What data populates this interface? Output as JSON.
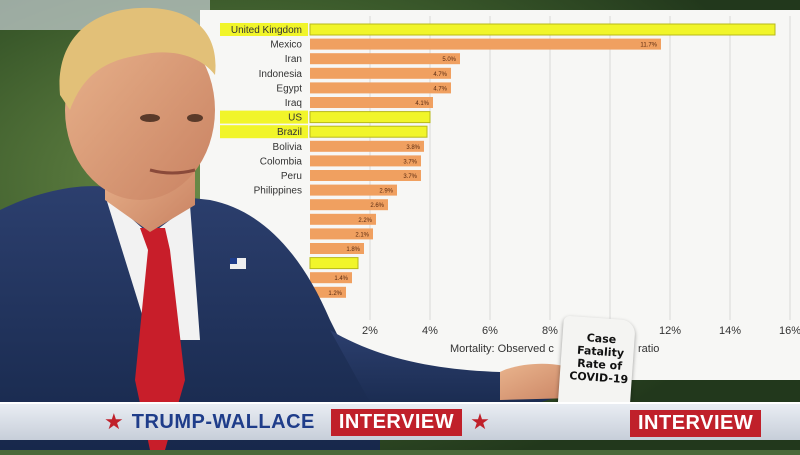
{
  "chart_data": {
    "type": "bar",
    "orientation": "horizontal",
    "categories": [
      "United Kingdom",
      "Mexico",
      "Iran",
      "Indonesia",
      "Egypt",
      "Iraq",
      "US",
      "Brazil",
      "Bolivia",
      "Colombia",
      "Peru",
      "Philippines"
    ],
    "values": [
      15.5,
      11.7,
      5.0,
      4.7,
      4.7,
      4.1,
      4.0,
      3.9,
      3.8,
      3.7,
      3.7,
      2.9
    ],
    "value_labels": [
      "",
      "11.7%",
      "5.0%",
      "4.7%",
      "4.7%",
      "4.1%",
      "",
      "",
      "3.8%",
      "3.7%",
      "3.7%",
      "2.9%"
    ],
    "partial_value_labels": [
      "2.6%",
      "2.2%",
      "2.1%",
      "1.8%",
      "1.4%",
      "1.2%"
    ],
    "highlighted": [
      "United Kingdom",
      "US",
      "Brazil"
    ],
    "xticks": [
      "2%",
      "4%",
      "6%",
      "8%",
      "12%",
      "14%",
      "16%"
    ],
    "xlim": [
      0,
      16
    ],
    "xlabel_visible": "Mortality: Observed c",
    "xlabel_visible_end": "ratio",
    "bar_color": "#f0a060",
    "highlight_color": "#f1f52a"
  },
  "banner": {
    "title": "TRUMP-WALLACE",
    "tag": "INTERVIEW",
    "tag_right": "INTERVIEW",
    "star_color": "#c0202a"
  },
  "note": {
    "lines": [
      "Case",
      "Fatality",
      "Rate of",
      "COVID-19"
    ]
  }
}
